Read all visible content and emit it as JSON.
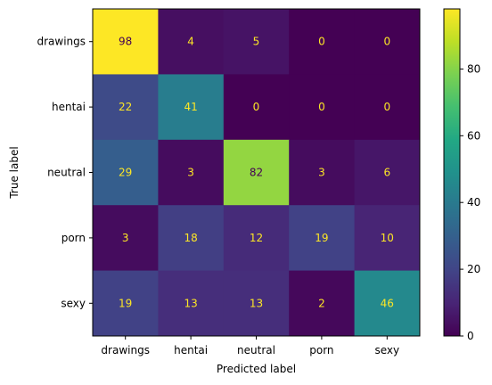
{
  "chart_data": {
    "type": "heatmap",
    "title": "",
    "xlabel": "Predicted label",
    "ylabel": "True label",
    "x_categories": [
      "drawings",
      "hentai",
      "neutral",
      "porn",
      "sexy"
    ],
    "y_categories": [
      "drawings",
      "hentai",
      "neutral",
      "porn",
      "sexy"
    ],
    "matrix": [
      [
        98,
        4,
        5,
        0,
        0
      ],
      [
        22,
        41,
        0,
        0,
        0
      ],
      [
        29,
        3,
        82,
        3,
        6
      ],
      [
        3,
        18,
        12,
        19,
        10
      ],
      [
        19,
        13,
        13,
        2,
        46
      ]
    ],
    "colormap": "viridis",
    "value_range": [
      0,
      98
    ],
    "colorbar_ticks": [
      0,
      20,
      40,
      60,
      80
    ],
    "label_color_light": "#fde725",
    "label_color_dark": "#440154"
  }
}
